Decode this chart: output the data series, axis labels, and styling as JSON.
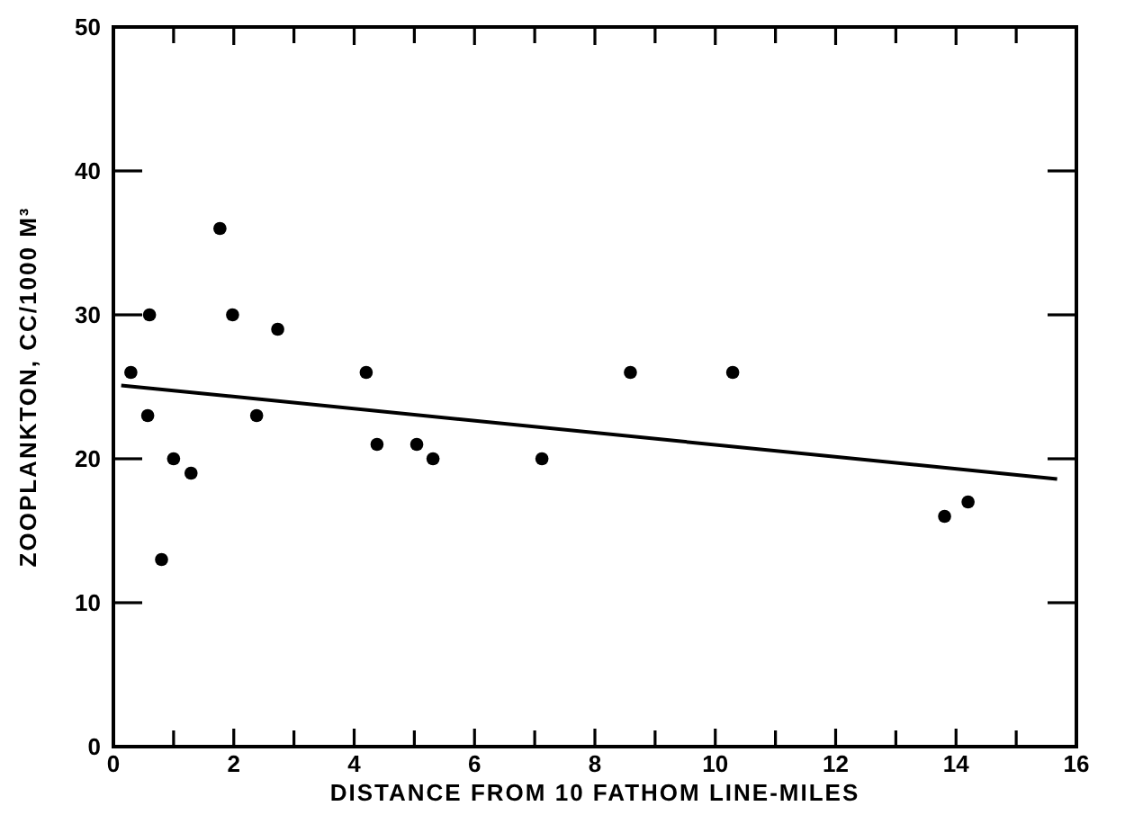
{
  "chart_data": {
    "type": "scatter",
    "xlabel": "DISTANCE FROM 10 FATHOM LINE-MILES",
    "ylabel": "ZOOPLANKTON, CC/1000 M³",
    "xlim": [
      0,
      16
    ],
    "ylim": [
      0,
      50
    ],
    "xticks": [
      0,
      {
        "value": 1,
        "label": null
      },
      2,
      {
        "value": 3,
        "label": null
      },
      4,
      {
        "value": 5,
        "label": null
      },
      6,
      {
        "value": 7,
        "label": null
      },
      8,
      {
        "value": 9,
        "label": null
      },
      {
        "value": 10,
        "label": "10"
      },
      {
        "value": 11,
        "label": null
      },
      12,
      {
        "value": 13,
        "label": null
      },
      14,
      {
        "value": 15,
        "label": null
      },
      16
    ],
    "yticks": [
      0,
      10,
      20,
      30,
      40,
      50
    ],
    "grid": false,
    "series": [
      {
        "color": "#000000",
        "marker": "circle",
        "x": [
          0.29,
          0.57,
          0.6,
          0.8,
          1.0,
          1.29,
          1.77,
          1.98,
          2.38,
          2.73,
          4.2,
          4.38,
          5.04,
          5.31,
          7.12,
          8.59,
          10.29,
          13.81,
          14.2
        ],
        "values": [
          26,
          23,
          30,
          13,
          20,
          19,
          36,
          30,
          23,
          29,
          26,
          21,
          21,
          20,
          20,
          26,
          26,
          16,
          17
        ]
      },
      {
        "type": "line",
        "color": "#000000",
        "marker": "none",
        "line_style": "solid",
        "x": [
          0.13,
          15.68
        ],
        "values": [
          25.1,
          18.6
        ]
      }
    ]
  }
}
